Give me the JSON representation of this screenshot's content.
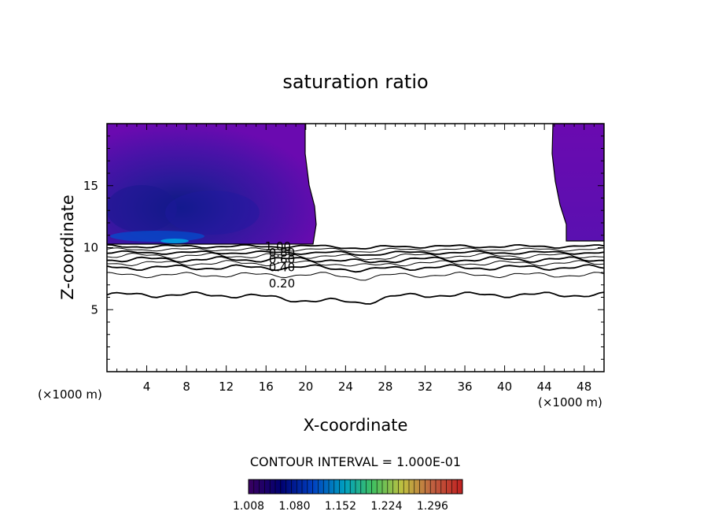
{
  "chart_data": {
    "type": "heatmap",
    "title": "saturation ratio",
    "xlabel": "X-coordinate",
    "ylabel": "Z-coordinate",
    "x_units": "(×1000 m)",
    "y_units": "(×1000 m)",
    "xlim": [
      0,
      50
    ],
    "ylim": [
      0,
      20
    ],
    "x_ticks": [
      "4",
      "8",
      "12",
      "16",
      "20",
      "24",
      "28",
      "32",
      "36",
      "40",
      "44",
      "48"
    ],
    "y_ticks": [
      "5",
      "10",
      "15"
    ],
    "contour_interval_text": "CONTOUR INTERVAL = 1.000E-01",
    "contour_labels": [
      "1.00",
      "0.80",
      "0.60",
      "0.40",
      "0.20"
    ],
    "colorbar_labels": [
      "1.008",
      "1.080",
      "1.152",
      "1.224",
      "1.296"
    ],
    "colorbar_range": [
      1.008,
      1.296
    ],
    "colormap": [
      "#3a0060",
      "#000070",
      "#0040c0",
      "#00a0c0",
      "#40c060",
      "#c0c040",
      "#c06040",
      "#c02020"
    ],
    "supersaturated_regions": [
      {
        "x_range": [
          0,
          21
        ],
        "z_range": [
          10.5,
          20
        ]
      },
      {
        "x_range": [
          45.5,
          50
        ],
        "z_range": [
          10.5,
          20
        ]
      }
    ],
    "contour_base_heights": [
      {
        "value": 0.2,
        "z": 6.2
      },
      {
        "value": 0.3,
        "z": 7.8
      },
      {
        "value": 0.4,
        "z": 8.4
      },
      {
        "value": 0.5,
        "z": 8.75
      },
      {
        "value": 0.6,
        "z": 9.05
      },
      {
        "value": 0.7,
        "z": 9.35
      },
      {
        "value": 0.8,
        "z": 9.6
      },
      {
        "value": 0.9,
        "z": 9.85
      },
      {
        "value": 1.0,
        "z": 10.1
      }
    ]
  }
}
